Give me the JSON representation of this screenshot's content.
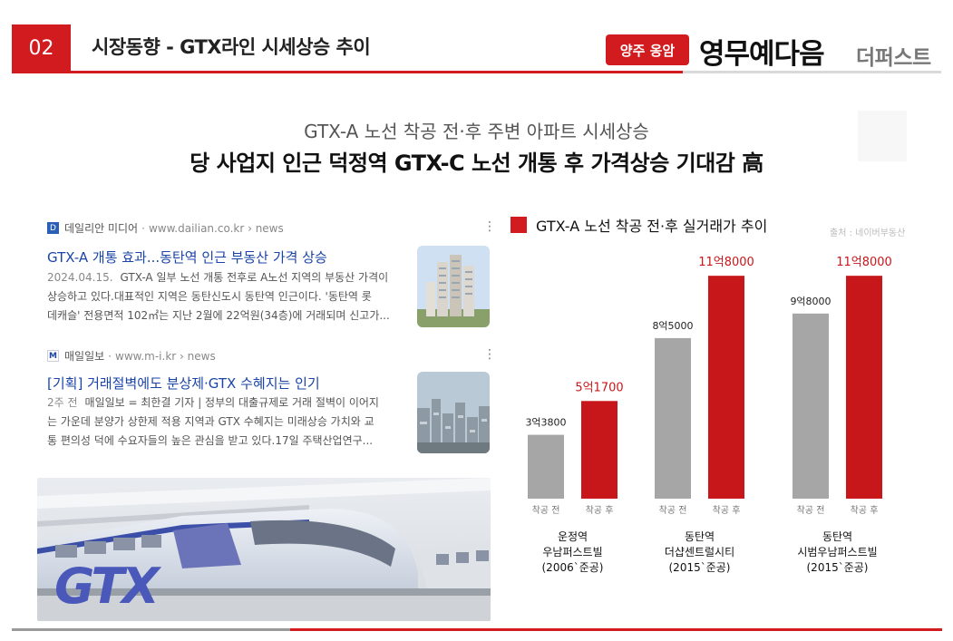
{
  "header": {
    "section_number": "02",
    "title": "시장동향 - GTX라인 시세상승 추이",
    "brand_tag": "양주 옹암",
    "brand_name": "영무예다음",
    "brand_sub": "더퍼스트"
  },
  "headline": {
    "line1": "GTX-A 노선 착공 전·후 주변 아파트 시세상승",
    "line2": "당 사업지 인근 덕정역 GTX-C 노선 개통 후 가격상승 기대감 高"
  },
  "news": [
    {
      "source_name": "데일리안 미디어",
      "source_url": "www.dailian.co.kr › news",
      "title": "GTX-A 개통 효과...동탄역 인근 부동산 가격 상승",
      "date": "2024.04.15.",
      "snippet1": "GTX-A 일부 노선 개통 전후로 A노선 지역의 부동산 가격이",
      "snippet2": "상승하고 있다.대표적인 지역은 동탄신도시 동탄역 인근이다. '동탄역 롯",
      "snippet3": "데캐슬' 전용면적 102㎡는 지난 2월에 22억원(34층)에 거래되며 신고가..."
    },
    {
      "source_name": "매일일보",
      "source_url": "www.m-i.kr › news",
      "title": "[기획] 거래절벽에도 분상제·GTX 수혜지는 인기",
      "date": "2주 전",
      "snippet1": "매일일보 = 최한결 기자 | 정부의 대출규제로 거래 절벽이 이어지",
      "snippet2": "는 가운데 분양가 상한제 적용 지역과 GTX 수혜지는 미래상승 가치와 교",
      "snippet3": "통 편의성 덕에 수요자들의 높은 관심을 받고 있다.17일 주택산업연구..."
    }
  ],
  "logo_text": "GTX",
  "legend_label": "GTX-A 노선 착공 전·후 실거래가 추이",
  "source_note": "출처 : 네이버부동산",
  "colors": {
    "accent": "#d21b1f",
    "before_bar": "#a6a6a6",
    "after_bar": "#c8171b"
  },
  "chart_data": {
    "type": "bar",
    "unit": "만원",
    "ylim": [
      0,
      120000
    ],
    "bar_labels": [
      "착공 전",
      "착공 후"
    ],
    "groups": [
      {
        "line1": "운정역",
        "line2": "우남퍼스트빌",
        "line3": "(2006`준공)",
        "before": 33800,
        "after": 51700,
        "before_label": "3억3800",
        "after_label": "5억1700"
      },
      {
        "line1": "동탄역",
        "line2": "더샵센트럴시티",
        "line3": "(2015`준공)",
        "before": 85000,
        "after": 118000,
        "before_label": "8억5000",
        "after_label": "11억8000"
      },
      {
        "line1": "동탄역",
        "line2": "시범우남퍼스트빌",
        "line3": "(2015`준공)",
        "before": 98000,
        "after": 118000,
        "before_label": "9억8000",
        "after_label": "11억8000"
      }
    ]
  }
}
